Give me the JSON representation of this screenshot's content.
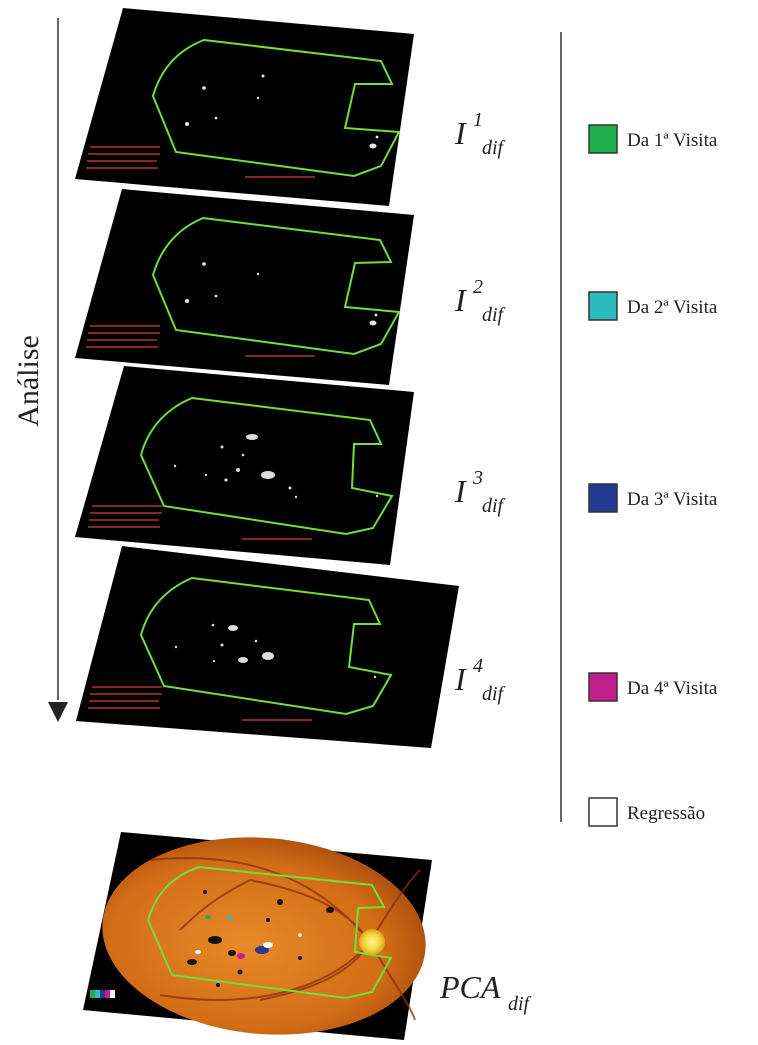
{
  "analysis_label": "Análise",
  "panels": [
    {
      "base": "I",
      "sup": "1",
      "sub": "dif"
    },
    {
      "base": "I",
      "sup": "2",
      "sub": "dif"
    },
    {
      "base": "I",
      "sup": "3",
      "sub": "dif"
    },
    {
      "base": "I",
      "sup": "4",
      "sub": "dif"
    }
  ],
  "pca": {
    "base": "PCA",
    "sub": "dif"
  },
  "legend": [
    {
      "label": "Da 1ª Visita",
      "color": "#1fae4b"
    },
    {
      "label": "Da 2ª Visita",
      "color": "#2cbcbf"
    },
    {
      "label": "Da 3ª Visita",
      "color": "#243a92"
    },
    {
      "label": "Da 4ª Visita",
      "color": "#c0208b"
    },
    {
      "label": "Regressão",
      "color": "#ffffff"
    }
  ],
  "colors": {
    "roi_outline": "#6fe03a",
    "panel_background": "#000000",
    "panel_text": "#c0392b",
    "retina": "#d7781c",
    "optic_disc": "#f5e13a"
  }
}
